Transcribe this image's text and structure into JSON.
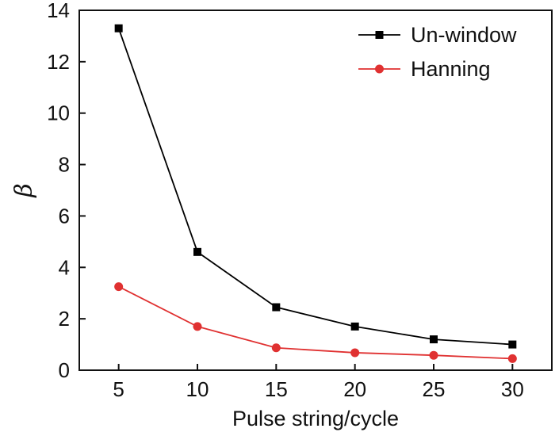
{
  "chart_data": {
    "type": "line",
    "title": "",
    "xlabel": "Pulse string/cycle",
    "ylabel": "β",
    "x": [
      5,
      10,
      15,
      20,
      25,
      30
    ],
    "xticks": [
      5,
      10,
      15,
      20,
      25,
      30
    ],
    "xlim": [
      2.5,
      32.5
    ],
    "yticks": [
      0,
      2,
      4,
      6,
      8,
      10,
      12,
      14
    ],
    "ylim": [
      0,
      14
    ],
    "grid": false,
    "legend_position": "top-right",
    "series": [
      {
        "name": "Un-window",
        "marker": "square",
        "color": "#000000",
        "values": [
          13.3,
          4.6,
          2.45,
          1.7,
          1.2,
          1.0
        ]
      },
      {
        "name": "Hanning",
        "marker": "circle",
        "color": "#e03131",
        "values": [
          3.25,
          1.7,
          0.87,
          0.68,
          0.58,
          0.45
        ]
      }
    ]
  }
}
